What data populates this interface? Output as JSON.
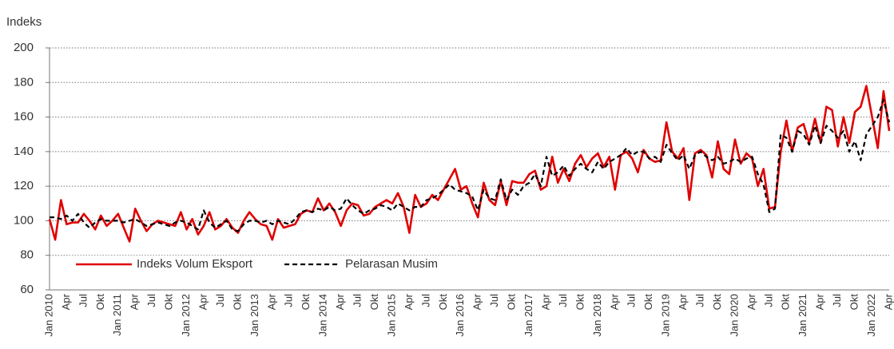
{
  "chart_data": {
    "type": "line",
    "ylabel": "Indeks",
    "categories": [
      "Jan 2010",
      null,
      null,
      "Apr",
      null,
      null,
      "Jul",
      null,
      null,
      "Okt",
      null,
      null,
      "Jan 2011",
      null,
      null,
      "Apr",
      null,
      null,
      "Jul",
      null,
      null,
      "Okt",
      null,
      null,
      "Jan 2012",
      null,
      null,
      "Apr",
      null,
      null,
      "Jul",
      null,
      null,
      "Okt",
      null,
      null,
      "Jan 2013",
      null,
      null,
      "Apr",
      null,
      null,
      "Jul",
      null,
      null,
      "Okt",
      null,
      null,
      "Jan 2014",
      null,
      null,
      "Apr",
      null,
      null,
      "Jul",
      null,
      null,
      "Okt",
      null,
      null,
      "Jan 2015",
      null,
      null,
      "Apr",
      null,
      null,
      "Jul",
      null,
      null,
      "Okt",
      null,
      null,
      "Jan 2016",
      null,
      null,
      "Apr",
      null,
      null,
      "Jul",
      null,
      null,
      "Okt",
      null,
      null,
      "Jan 2017",
      null,
      null,
      "Apr",
      null,
      null,
      "Jul",
      null,
      null,
      "Okt",
      null,
      null,
      "Jan 2018",
      null,
      null,
      "Apr",
      null,
      null,
      "Jul",
      null,
      null,
      "Okt",
      null,
      null,
      "Jan 2019",
      null,
      null,
      "Apr",
      null,
      null,
      "Jul",
      null,
      null,
      "Okt",
      null,
      null,
      "Jan 2020",
      null,
      null,
      "Apr",
      null,
      null,
      "Jul",
      null,
      null,
      "Okt",
      null,
      null,
      "Jan 2021",
      null,
      null,
      "Apr",
      null,
      null,
      "Jul",
      null,
      null,
      "Okt",
      null,
      null,
      "Jan 2022",
      null,
      null,
      "Apr"
    ],
    "series": [
      {
        "name": "Indeks Volum Eksport",
        "color": "#e00000",
        "dash": false,
        "values": [
          101,
          89,
          112,
          98,
          99,
          99,
          104,
          100,
          95,
          103,
          97,
          100,
          104,
          96,
          88,
          107,
          100,
          94,
          98,
          100,
          99,
          98,
          97,
          105,
          95,
          101,
          92,
          97,
          105,
          95,
          97,
          101,
          96,
          93,
          100,
          105,
          101,
          98,
          97,
          89,
          101,
          96,
          97,
          98,
          104,
          106,
          105,
          113,
          106,
          110,
          105,
          97,
          106,
          110,
          109,
          103,
          104,
          108,
          110,
          112,
          110,
          116,
          108,
          93,
          115,
          108,
          110,
          115,
          112,
          118,
          124,
          130,
          118,
          120,
          110,
          102,
          122,
          112,
          109,
          123,
          109,
          123,
          122,
          122,
          127,
          129,
          118,
          120,
          137,
          122,
          130,
          123,
          133,
          138,
          131,
          136,
          139,
          131,
          137,
          118,
          138,
          140,
          136,
          128,
          141,
          136,
          134,
          135,
          157,
          140,
          136,
          142,
          112,
          139,
          141,
          138,
          125,
          146,
          130,
          127,
          147,
          133,
          139,
          136,
          120,
          130,
          107,
          108,
          140,
          158,
          140,
          154,
          156,
          145,
          159,
          145,
          166,
          164,
          143,
          160,
          145,
          163,
          166,
          178,
          160,
          142,
          175,
          152
        ]
      },
      {
        "name": "Pelarasan Musim",
        "color": "#000000",
        "dash": true,
        "values": [
          102,
          102,
          101,
          103,
          100,
          104,
          99,
          96,
          99,
          101,
          100,
          100,
          100,
          99,
          100,
          101,
          99,
          97,
          98,
          99,
          98,
          97,
          99,
          100,
          99,
          97,
          95,
          106,
          99,
          96,
          98,
          100,
          95,
          94,
          98,
          100,
          100,
          99,
          100,
          98,
          100,
          99,
          98,
          101,
          105,
          106,
          105,
          107,
          106,
          108,
          106,
          107,
          113,
          109,
          106,
          104,
          106,
          107,
          109,
          108,
          106,
          110,
          108,
          106,
          108,
          108,
          112,
          113,
          115,
          118,
          121,
          118,
          117,
          116,
          114,
          106,
          118,
          113,
          112,
          124,
          112,
          118,
          115,
          120,
          122,
          127,
          120,
          137,
          126,
          128,
          132,
          126,
          130,
          133,
          130,
          128,
          134,
          130,
          134,
          136,
          138,
          142,
          138,
          140,
          140,
          136,
          137,
          134,
          144,
          139,
          135,
          138,
          130,
          138,
          140,
          137,
          135,
          137,
          133,
          134,
          136,
          134,
          136,
          137,
          127,
          121,
          105,
          107,
          150,
          148,
          140,
          152,
          150,
          144,
          155,
          145,
          155,
          152,
          148,
          152,
          140,
          146,
          135,
          150,
          155,
          160,
          170,
          157
        ]
      }
    ],
    "ylim": [
      60,
      200
    ],
    "yticks": [
      60,
      80,
      100,
      120,
      140,
      160,
      180,
      200
    ],
    "grid": true,
    "legend": "lower left"
  }
}
